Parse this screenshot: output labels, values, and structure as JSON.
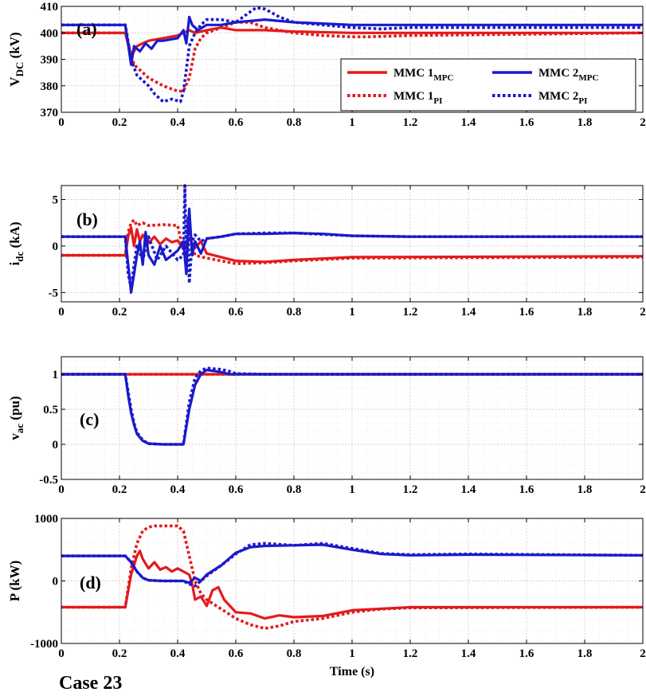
{
  "colors": {
    "mpc1": "#e41a1c",
    "mpc2": "#1a1acc"
  },
  "line_styles": {
    "MPC": "solid",
    "PI": "dotted"
  },
  "case_label": "Case 23",
  "chart_data": [
    {
      "type": "line",
      "panel_label": "(a)",
      "ylabel_main": "V",
      "ylabel_sub": "DC",
      "ylabel_unit": " (kV)",
      "xlabel": "",
      "xlim": [
        0,
        2
      ],
      "ylim": [
        370,
        410
      ],
      "xticks": [
        0,
        0.2,
        0.4,
        0.6,
        0.8,
        1,
        1.2,
        1.4,
        1.6,
        1.8,
        2
      ],
      "xtick_labels": [
        "0",
        "0.2",
        "0.4",
        "0.6",
        "0.8",
        "1",
        "1.2",
        "1.4",
        "1.6",
        "1.8",
        "2"
      ],
      "yticks": [
        370,
        380,
        390,
        400,
        410
      ],
      "ytick_labels": [
        "370",
        "380",
        "390",
        "400",
        "410"
      ],
      "grid": true,
      "legend": {
        "placement": "right",
        "entries": [
          {
            "base": "MMC 1",
            "sub": "MPC",
            "color": "mpc1",
            "style": "MPC"
          },
          {
            "base": "MMC 2",
            "sub": "MPC",
            "color": "mpc2",
            "style": "MPC"
          },
          {
            "base": "MMC 1",
            "sub": "PI",
            "color": "mpc1",
            "style": "PI"
          },
          {
            "base": "MMC 2",
            "sub": "PI",
            "color": "mpc2",
            "style": "PI"
          }
        ]
      },
      "series": [
        {
          "key": "mmc1_mpc",
          "color": "mpc1",
          "style": "MPC",
          "x": [
            0,
            0.22,
            0.24,
            0.26,
            0.28,
            0.3,
            0.35,
            0.4,
            0.42,
            0.44,
            0.46,
            0.5,
            0.55,
            0.6,
            0.7,
            0.8,
            1.0,
            2.0
          ],
          "y": [
            400,
            400,
            391,
            395,
            396,
            397,
            398,
            399,
            400,
            401,
            400,
            401,
            402,
            401,
            401,
            400.5,
            400,
            400
          ]
        },
        {
          "key": "mmc2_mpc",
          "color": "mpc2",
          "style": "MPC",
          "x": [
            0,
            0.22,
            0.24,
            0.25,
            0.27,
            0.29,
            0.31,
            0.33,
            0.35,
            0.4,
            0.42,
            0.43,
            0.44,
            0.45,
            0.47,
            0.5,
            0.55,
            0.6,
            0.7,
            0.8,
            0.9,
            1.0,
            1.2,
            2.0
          ],
          "y": [
            403,
            403,
            388,
            395,
            393,
            396,
            394,
            397,
            397,
            398,
            401,
            396,
            406,
            403,
            401,
            403,
            403,
            404,
            405,
            404,
            403.5,
            403,
            403,
            403
          ]
        },
        {
          "key": "mmc1_pi",
          "color": "mpc1",
          "style": "PI",
          "x": [
            0,
            0.22,
            0.25,
            0.3,
            0.35,
            0.4,
            0.42,
            0.44,
            0.46,
            0.48,
            0.5,
            0.55,
            0.6,
            0.65,
            0.7,
            0.8,
            0.9,
            1.0,
            1.05,
            1.2,
            2.0
          ],
          "y": [
            400,
            400,
            388,
            383,
            380,
            378,
            378,
            383,
            394,
            398,
            400,
            402,
            404,
            404,
            402,
            400,
            399,
            398.5,
            398.5,
            399,
            400
          ]
        },
        {
          "key": "mmc2_pi",
          "color": "mpc2",
          "style": "PI",
          "x": [
            0,
            0.22,
            0.24,
            0.26,
            0.3,
            0.32,
            0.35,
            0.38,
            0.41,
            0.42,
            0.43,
            0.44,
            0.46,
            0.48,
            0.5,
            0.55,
            0.6,
            0.65,
            0.67,
            0.7,
            0.75,
            0.8,
            0.9,
            1.0,
            1.1,
            1.2,
            2.0
          ],
          "y": [
            403,
            403,
            390,
            384,
            380,
            377,
            374,
            375,
            374,
            378,
            386,
            395,
            400,
            403,
            405,
            405,
            404,
            408,
            409.5,
            409,
            406,
            404,
            403,
            402,
            401.5,
            402,
            402
          ]
        }
      ]
    },
    {
      "type": "line",
      "panel_label": "(b)",
      "ylabel_main": "i",
      "ylabel_sub": "dc",
      "ylabel_unit": " (kA)",
      "xlabel": "",
      "xlim": [
        0,
        2
      ],
      "ylim": [
        -6,
        6.5
      ],
      "xticks": [
        0,
        0.2,
        0.4,
        0.6,
        0.8,
        1,
        1.2,
        1.4,
        1.6,
        1.8,
        2
      ],
      "xtick_labels": [
        "0",
        "0.2",
        "0.4",
        "0.6",
        "0.8",
        "1",
        "1.2",
        "1.4",
        "1.6",
        "1.8",
        "2"
      ],
      "yticks": [
        -5,
        0,
        5
      ],
      "ytick_labels": [
        "-5",
        "0",
        "5"
      ],
      "grid": true,
      "series": [
        {
          "key": "mmc1_mpc",
          "color": "mpc1",
          "style": "MPC",
          "x": [
            0,
            0.22,
            0.23,
            0.24,
            0.25,
            0.26,
            0.27,
            0.28,
            0.3,
            0.32,
            0.34,
            0.36,
            0.38,
            0.4,
            0.42,
            0.44,
            0.46,
            0.48,
            0.5,
            0.55,
            0.6,
            0.7,
            0.8,
            1.0,
            2.0
          ],
          "y": [
            -1,
            -1,
            1,
            2,
            0,
            1.8,
            0.5,
            1.2,
            0.3,
            1.0,
            0.2,
            0.8,
            0.4,
            0.6,
            -0.3,
            0.8,
            -0.2,
            0.5,
            -0.8,
            -1.2,
            -1.6,
            -1.7,
            -1.5,
            -1.2,
            -1.1
          ]
        },
        {
          "key": "mmc2_mpc",
          "color": "mpc2",
          "style": "MPC",
          "x": [
            0,
            0.22,
            0.23,
            0.24,
            0.25,
            0.26,
            0.27,
            0.28,
            0.29,
            0.3,
            0.32,
            0.34,
            0.36,
            0.38,
            0.4,
            0.42,
            0.43,
            0.44,
            0.45,
            0.46,
            0.48,
            0.5,
            0.55,
            0.6,
            0.7,
            0.8,
            0.9,
            1.0,
            1.2,
            2.0
          ],
          "y": [
            1,
            1,
            -2,
            -5,
            -3,
            -1,
            0.5,
            -2,
            1.5,
            -1,
            -2,
            0,
            -1.5,
            -1,
            -0.5,
            0.5,
            -3,
            4,
            -1,
            0.5,
            -0.8,
            0.8,
            1.0,
            1.3,
            1.3,
            1.4,
            1.3,
            1.1,
            1.0,
            1.0
          ]
        },
        {
          "key": "mmc1_pi",
          "color": "mpc1",
          "style": "PI",
          "x": [
            0,
            0.22,
            0.23,
            0.24,
            0.25,
            0.26,
            0.28,
            0.3,
            0.35,
            0.4,
            0.42,
            0.44,
            0.46,
            0.5,
            0.55,
            0.6,
            0.7,
            0.8,
            1.0,
            2.0
          ],
          "y": [
            -1,
            -1,
            1.5,
            2.5,
            2.8,
            2.2,
            2.5,
            2.2,
            2.3,
            2.2,
            -0.5,
            1.0,
            -1.0,
            -1.3,
            -1.6,
            -1.9,
            -1.8,
            -1.6,
            -1.3,
            -1.2
          ]
        },
        {
          "key": "mmc2_pi",
          "color": "mpc2",
          "style": "PI",
          "x": [
            0,
            0.22,
            0.23,
            0.24,
            0.25,
            0.26,
            0.28,
            0.3,
            0.33,
            0.36,
            0.4,
            0.42,
            0.425,
            0.43,
            0.435,
            0.44,
            0.45,
            0.46,
            0.48,
            0.5,
            0.55,
            0.6,
            0.7,
            0.8,
            1.0,
            1.2,
            2.0
          ],
          "y": [
            1,
            1,
            -3,
            -4.5,
            -2,
            0,
            -1.5,
            1,
            -1.5,
            0,
            -1.5,
            -1,
            6.5,
            -1,
            3,
            -4,
            0.5,
            1.2,
            0.5,
            0.8,
            1.0,
            1.3,
            1.4,
            1.4,
            1.1,
            1.0,
            1.0
          ]
        }
      ]
    },
    {
      "type": "line",
      "panel_label": "(c)",
      "ylabel_main": "v",
      "ylabel_sub": "ac",
      "ylabel_unit": " (pu)",
      "xlabel": "",
      "xlim": [
        0,
        2
      ],
      "ylim": [
        -0.5,
        1.25
      ],
      "xticks": [
        0,
        0.2,
        0.4,
        0.6,
        0.8,
        1,
        1.2,
        1.4,
        1.6,
        1.8,
        2
      ],
      "xtick_labels": [
        "0",
        "0.2",
        "0.4",
        "0.6",
        "0.8",
        "1",
        "1.2",
        "1.4",
        "1.6",
        "1.8",
        "2"
      ],
      "yticks": [
        -0.5,
        0,
        0.5,
        1
      ],
      "ytick_labels": [
        "-0.5",
        "0",
        "0.5",
        "1"
      ],
      "grid": true,
      "series": [
        {
          "key": "mmc1_mpc",
          "color": "mpc1",
          "style": "MPC",
          "x": [
            0,
            2.0
          ],
          "y": [
            1,
            1
          ]
        },
        {
          "key": "mmc2_mpc",
          "color": "mpc2",
          "style": "MPC",
          "x": [
            0,
            0.22,
            0.23,
            0.24,
            0.25,
            0.26,
            0.28,
            0.3,
            0.35,
            0.42,
            0.44,
            0.46,
            0.48,
            0.5,
            0.52,
            0.55,
            0.58,
            0.6,
            0.7,
            2.0
          ],
          "y": [
            1,
            1,
            0.7,
            0.45,
            0.28,
            0.15,
            0.05,
            0.01,
            0,
            0,
            0.5,
            0.85,
            1.0,
            1.06,
            1.05,
            1.03,
            1.0,
            1.0,
            1.0,
            1.0
          ]
        },
        {
          "key": "mmc1_pi",
          "color": "mpc1",
          "style": "PI",
          "x": [
            0,
            2.0
          ],
          "y": [
            1,
            1
          ]
        },
        {
          "key": "mmc2_pi",
          "color": "mpc2",
          "style": "PI",
          "x": [
            0,
            0.22,
            0.23,
            0.24,
            0.25,
            0.26,
            0.28,
            0.3,
            0.35,
            0.42,
            0.44,
            0.46,
            0.48,
            0.5,
            0.52,
            0.55,
            0.58,
            0.6,
            0.7,
            2.0
          ],
          "y": [
            1,
            1,
            0.75,
            0.5,
            0.3,
            0.17,
            0.06,
            0.01,
            0,
            0,
            0.6,
            0.95,
            1.05,
            1.09,
            1.08,
            1.07,
            1.04,
            1.01,
            1.0,
            1.0
          ]
        }
      ]
    },
    {
      "type": "line",
      "panel_label": "(d)",
      "ylabel_main": "P (kW)",
      "ylabel_sub": "",
      "ylabel_unit": "",
      "xlabel": "Time (s)",
      "xlim": [
        0,
        2
      ],
      "ylim": [
        -1000,
        1000
      ],
      "xticks": [
        0,
        0.2,
        0.4,
        0.6,
        0.8,
        1,
        1.2,
        1.4,
        1.6,
        1.8,
        2
      ],
      "xtick_labels": [
        "0",
        "0.2",
        "0.4",
        "0.6",
        "0.8",
        "1",
        "1.2",
        "1.4",
        "1.6",
        "1.8",
        "2"
      ],
      "yticks": [
        -1000,
        0,
        1000
      ],
      "ytick_labels": [
        "-1000",
        "0",
        "1000"
      ],
      "grid": true,
      "series": [
        {
          "key": "mmc1_mpc",
          "color": "mpc1",
          "style": "MPC",
          "x": [
            0,
            0.22,
            0.24,
            0.26,
            0.27,
            0.28,
            0.3,
            0.32,
            0.34,
            0.36,
            0.38,
            0.4,
            0.42,
            0.44,
            0.45,
            0.46,
            0.48,
            0.5,
            0.52,
            0.54,
            0.56,
            0.6,
            0.65,
            0.7,
            0.75,
            0.8,
            0.9,
            1.0,
            1.2,
            2.0
          ],
          "y": [
            -420,
            -420,
            100,
            400,
            480,
            350,
            200,
            300,
            180,
            220,
            150,
            200,
            150,
            100,
            -50,
            -300,
            -250,
            -400,
            -150,
            -100,
            -300,
            -500,
            -520,
            -600,
            -550,
            -580,
            -560,
            -470,
            -420,
            -420
          ]
        },
        {
          "key": "mmc2_mpc",
          "color": "mpc2",
          "style": "MPC",
          "x": [
            0,
            0.22,
            0.24,
            0.26,
            0.28,
            0.3,
            0.35,
            0.42,
            0.44,
            0.46,
            0.48,
            0.5,
            0.55,
            0.6,
            0.65,
            0.7,
            0.8,
            0.9,
            1.0,
            1.1,
            1.2,
            1.4,
            2.0
          ],
          "y": [
            400,
            400,
            300,
            150,
            50,
            10,
            0,
            0,
            -30,
            50,
            0,
            100,
            250,
            450,
            540,
            560,
            570,
            580,
            500,
            430,
            410,
            420,
            410
          ]
        },
        {
          "key": "mmc1_pi",
          "color": "mpc1",
          "style": "PI",
          "x": [
            0,
            0.22,
            0.24,
            0.26,
            0.28,
            0.3,
            0.32,
            0.35,
            0.4,
            0.42,
            0.44,
            0.46,
            0.48,
            0.5,
            0.55,
            0.6,
            0.65,
            0.7,
            0.75,
            0.8,
            0.9,
            1.0,
            1.1,
            1.2,
            2.0
          ],
          "y": [
            -420,
            -420,
            200,
            600,
            800,
            860,
            880,
            880,
            880,
            800,
            400,
            0,
            -200,
            -300,
            -450,
            -600,
            -700,
            -760,
            -720,
            -650,
            -600,
            -500,
            -450,
            -430,
            -420
          ]
        },
        {
          "key": "mmc2_pi",
          "color": "mpc2",
          "style": "PI",
          "x": [
            0,
            0.22,
            0.24,
            0.26,
            0.28,
            0.3,
            0.35,
            0.42,
            0.44,
            0.46,
            0.48,
            0.5,
            0.55,
            0.6,
            0.65,
            0.7,
            0.8,
            0.9,
            1.0,
            1.1,
            1.2,
            1.4,
            2.0
          ],
          "y": [
            400,
            400,
            300,
            150,
            50,
            10,
            0,
            0,
            -50,
            -80,
            0,
            80,
            250,
            430,
            580,
            600,
            570,
            600,
            520,
            440,
            420,
            430,
            410
          ]
        }
      ]
    }
  ]
}
